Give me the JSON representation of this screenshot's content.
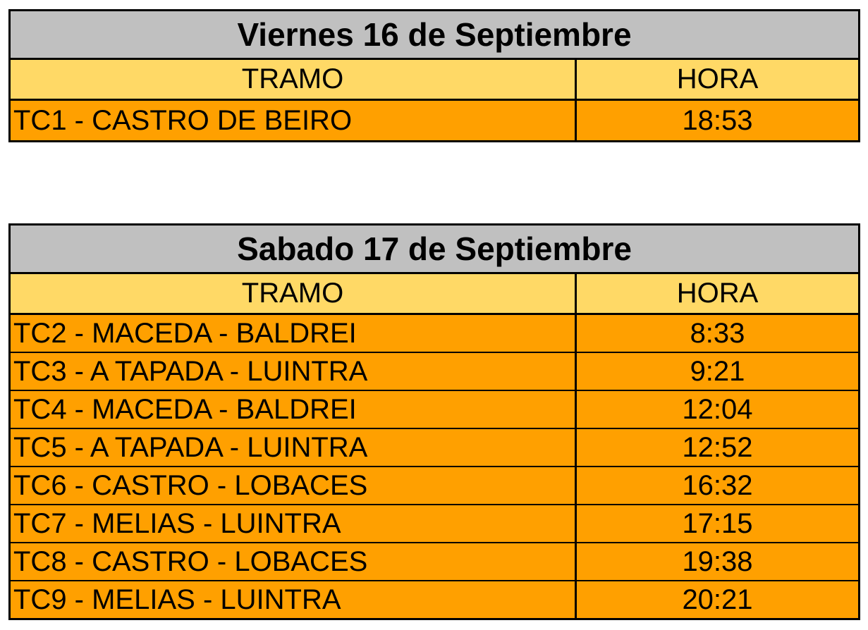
{
  "colors": {
    "title_bg": "#C0C0C0",
    "header_bg": "#FFD966",
    "row_bg": "#FFA000",
    "border": "#000000",
    "text": "#000000"
  },
  "tables": [
    {
      "title": "Viernes 16 de Septiembre",
      "columns": {
        "tramo": "TRAMO",
        "hora": "HORA"
      },
      "rows": [
        {
          "tramo": "TC1 - CASTRO DE BEIRO",
          "hora": "18:53"
        }
      ]
    },
    {
      "title": "Sabado 17 de Septiembre",
      "columns": {
        "tramo": "TRAMO",
        "hora": "HORA"
      },
      "rows": [
        {
          "tramo": "TC2 - MACEDA - BALDREI",
          "hora": "8:33"
        },
        {
          "tramo": "TC3 - A TAPADA - LUINTRA",
          "hora": "9:21"
        },
        {
          "tramo": "TC4 - MACEDA - BALDREI",
          "hora": "12:04"
        },
        {
          "tramo": "TC5 - A TAPADA - LUINTRA",
          "hora": "12:52"
        },
        {
          "tramo": "TC6 - CASTRO - LOBACES",
          "hora": "16:32"
        },
        {
          "tramo": "TC7 - MELIAS - LUINTRA",
          "hora": "17:15"
        },
        {
          "tramo": "TC8 - CASTRO - LOBACES",
          "hora": "19:38"
        },
        {
          "tramo": "TC9 - MELIAS - LUINTRA",
          "hora": "20:21"
        }
      ]
    }
  ]
}
